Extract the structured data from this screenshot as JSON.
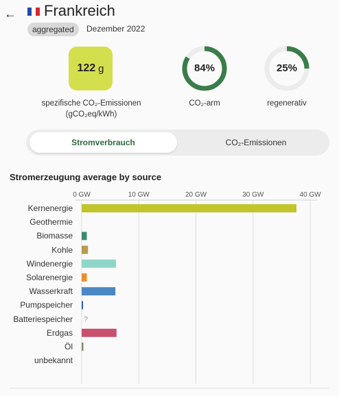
{
  "header": {
    "back_icon": "arrow-left-icon",
    "flag_icon": "flag-france-icon",
    "flag_colors": [
      "#1f4aa8",
      "#ffffff",
      "#d8262e"
    ],
    "title": "Frankreich",
    "badge": "aggregated",
    "date": "Dezember 2022"
  },
  "summary": {
    "co2_value": "122",
    "co2_unit": "g",
    "co2_caption_line1": "spezifische CO₂-Emissionen",
    "co2_caption_line2": "(gCO₂eq/kWh)",
    "co2_box_color": "#d4df4e",
    "low_carbon_value": "84%",
    "low_carbon_fraction": 0.84,
    "low_carbon_label": "CO₂-arm",
    "renewable_value": "25%",
    "renewable_fraction": 0.25,
    "renewable_label": "regenerativ",
    "ring_color": "#3a7d4a"
  },
  "toggle": {
    "active_label": "Stromverbrauch",
    "inactive_label": "CO₂-Emissionen"
  },
  "chart_data": {
    "type": "bar",
    "orientation": "horizontal",
    "title": "Stromerzeugung average by source",
    "unit": "GW",
    "xlim": [
      0,
      40
    ],
    "ticks": [
      "0 GW",
      "10 GW",
      "20 GW",
      "30 GW",
      "40 GW"
    ],
    "tick_values": [
      0,
      10,
      20,
      30,
      40
    ],
    "grid": true,
    "categories": [
      "Kernenergie",
      "Geothermie",
      "Biomasse",
      "Kohle",
      "Windenergie",
      "Solarenergie",
      "Wasserkraft",
      "Pumpspeicher",
      "Batteriespeicher",
      "Erdgas",
      "Öl",
      "unbekannt"
    ],
    "values": [
      37.6,
      0,
      0.9,
      1.1,
      6.0,
      0.9,
      5.9,
      0.2,
      null,
      6.1,
      0.3,
      0
    ],
    "colors": [
      "#c2c42c",
      "#aaaaaa",
      "#3d8a6e",
      "#b89a4e",
      "#8fd6c8",
      "#ea8f30",
      "#4a87c4",
      "#2a64c4",
      "#aaaaaa",
      "#c8506e",
      "#8a8a6e",
      "#aaaaaa"
    ],
    "missing_marker": "?"
  }
}
